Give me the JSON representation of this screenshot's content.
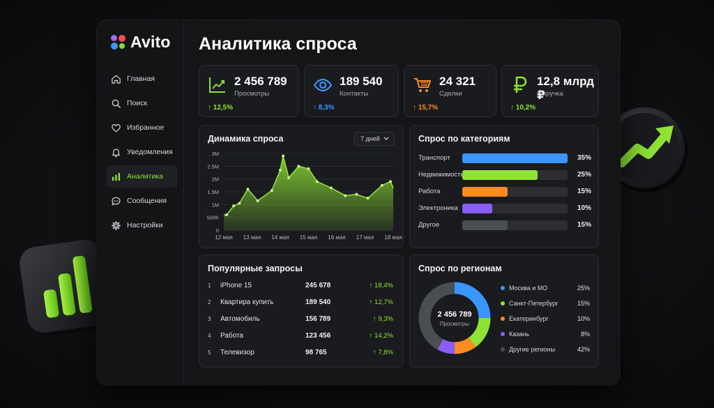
{
  "brand": {
    "name": "Avito"
  },
  "nav": {
    "items": [
      {
        "label": "Главная",
        "icon": "home-icon",
        "active": false
      },
      {
        "label": "Поиск",
        "icon": "search-icon",
        "active": false
      },
      {
        "label": "Избранное",
        "icon": "heart-icon",
        "active": false
      },
      {
        "label": "Уведомления",
        "icon": "bell-icon",
        "active": false
      },
      {
        "label": "Аналитика",
        "icon": "bar-chart-icon",
        "active": true
      },
      {
        "label": "Сообщения",
        "icon": "chat-icon",
        "active": false
      },
      {
        "label": "Настройки",
        "icon": "gear-icon",
        "active": false
      }
    ]
  },
  "page": {
    "title": "Аналитика спроса"
  },
  "kpis": [
    {
      "value": "2 456 789",
      "label": "Просмотры",
      "change": "↑ 12,5%",
      "icon": "trend-up-icon",
      "color": "#8fe236"
    },
    {
      "value": "189 540",
      "label": "Контакты",
      "change": "↑ 8,3%",
      "icon": "eye-icon",
      "color": "#3a95ff"
    },
    {
      "value": "24 321",
      "label": "Сделки",
      "change": "↑ 15,7%",
      "icon": "cart-icon",
      "color": "#ff8a1f"
    },
    {
      "value": "12,8 млрд ₽",
      "label": "Выручка",
      "change": "↑ 10,2%",
      "icon": "ruble-icon",
      "color": "#8fe236"
    }
  ],
  "demand": {
    "title": "Динамика спроса",
    "period": "7 дней",
    "chart_data": {
      "type": "area",
      "y_ticks": [
        "3M",
        "2.5M",
        "2M",
        "1.5M",
        "1M",
        "500K",
        "0"
      ],
      "x_ticks": [
        "12 мая",
        "13 мая",
        "14 мая",
        "15 мая",
        "16 мая",
        "17 мая",
        "18 мая"
      ],
      "ylim": [
        0,
        3000000
      ],
      "x": [
        12.0,
        12.1,
        12.35,
        12.55,
        12.85,
        13.2,
        13.7,
        14.0,
        14.1,
        14.3,
        14.65,
        15.0,
        15.3,
        15.8,
        16.3,
        16.7,
        17.1,
        17.6,
        17.9,
        18.0
      ],
      "y": [
        600000,
        600000,
        950000,
        1050000,
        1600000,
        1150000,
        1550000,
        2350000,
        2900000,
        2050000,
        2500000,
        2400000,
        1900000,
        1650000,
        1350000,
        1400000,
        1250000,
        1750000,
        1900000,
        1650000
      ],
      "color": "#8fe236"
    }
  },
  "categories": {
    "title": "Спрос по категориям",
    "chart_data": {
      "type": "bar",
      "categories": [
        "Транспорт",
        "Недвижимость",
        "Работа",
        "Электроника",
        "Другое"
      ],
      "values": [
        35,
        25,
        15,
        10,
        15
      ],
      "labels": [
        "35%",
        "25%",
        "15%",
        "10%",
        "15%"
      ],
      "colors": [
        "#3a95ff",
        "#8fe236",
        "#ff8a1f",
        "#8b5cf6",
        "#4a4d52"
      ]
    }
  },
  "queries": {
    "title": "Популярные запросы",
    "rows": [
      {
        "n": "1",
        "text": "iPhone 15",
        "count": "245 678",
        "growth": "↑ 18,4%"
      },
      {
        "n": "2",
        "text": "Квартира купить",
        "count": "189 540",
        "growth": "↑ 12,7%"
      },
      {
        "n": "3",
        "text": "Автомобиль",
        "count": "156 789",
        "growth": "↑ 9,3%"
      },
      {
        "n": "4",
        "text": "Работа",
        "count": "123 456",
        "growth": "↑ 14,2%"
      },
      {
        "n": "5",
        "text": "Телевизор",
        "count": "98 765",
        "growth": "↑ 7,8%"
      }
    ]
  },
  "regions": {
    "title": "Спрос по регионам",
    "center_value": "2 456 789",
    "center_label": "Просмотры",
    "chart_data": {
      "type": "pie",
      "labels": [
        "Москва и МО",
        "Санкт-Петербург",
        "Екатеринбург",
        "Казань",
        "Другие регионы"
      ],
      "values": [
        25,
        15,
        10,
        8,
        42
      ],
      "pct_labels": [
        "25%",
        "15%",
        "10%",
        "8%",
        "42%"
      ],
      "colors": [
        "#3a95ff",
        "#8fe236",
        "#ff8a1f",
        "#8b5cf6",
        "#4a4d52"
      ]
    }
  }
}
